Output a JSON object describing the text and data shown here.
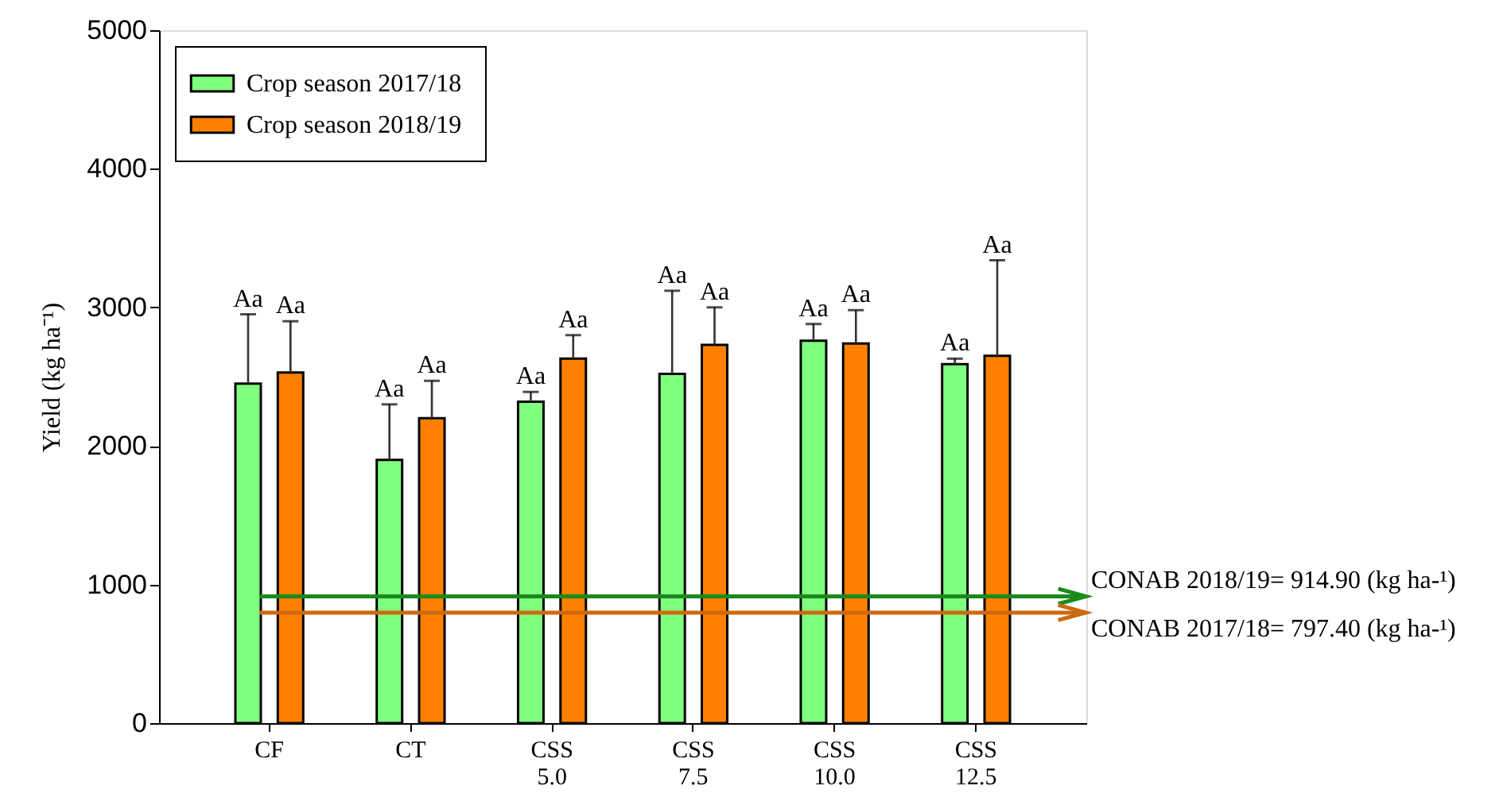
{
  "chart_data": {
    "type": "bar",
    "categories": [
      "CF",
      "CT",
      "CSS 5.0",
      "CSS 7.5",
      "CSS 10.0",
      "CSS 12.5"
    ],
    "series": [
      {
        "name": "Crop season 2017/18",
        "color": "#80ff80",
        "values": [
          2450,
          1900,
          2320,
          2520,
          2760,
          2590
        ],
        "errors": [
          [
            2450,
            2950
          ],
          [
            1900,
            2300
          ],
          [
            2320,
            2390
          ],
          [
            2520,
            3120
          ],
          [
            2760,
            2880
          ],
          [
            2590,
            2630
          ]
        ]
      },
      {
        "name": "Crop season 2018/19",
        "color": "#ff8000",
        "values": [
          2530,
          2200,
          2630,
          2730,
          2740,
          2650
        ],
        "errors": [
          [
            2530,
            2900
          ],
          [
            2200,
            2470
          ],
          [
            2630,
            2800
          ],
          [
            2730,
            3000
          ],
          [
            2740,
            2980
          ],
          [
            2650,
            3340
          ]
        ]
      }
    ],
    "ylabel": "Yield (kg ha⁻¹)",
    "ylim": [
      0,
      5000
    ],
    "yticks": [
      0,
      1000,
      2000,
      3000,
      4000,
      5000
    ],
    "grid": false,
    "legend": "top left",
    "ref_lines": [
      {
        "axis": "y",
        "value": 914.9,
        "label": "CONAB 2018/19= 914.90 (kg ha-¹)",
        "color": "#1a8a1a"
      },
      {
        "axis": "y",
        "value": 797.4,
        "label": "CONAB 2017/18= 797.40 (kg ha-¹)",
        "color": "#cc6a10"
      }
    ],
    "annotations": [
      "Aa",
      "Aa",
      "Aa",
      "Aa",
      "Aa",
      "Aa",
      "Aa",
      "Aa",
      "Aa",
      "Aa",
      "Aa",
      "Aa"
    ]
  }
}
